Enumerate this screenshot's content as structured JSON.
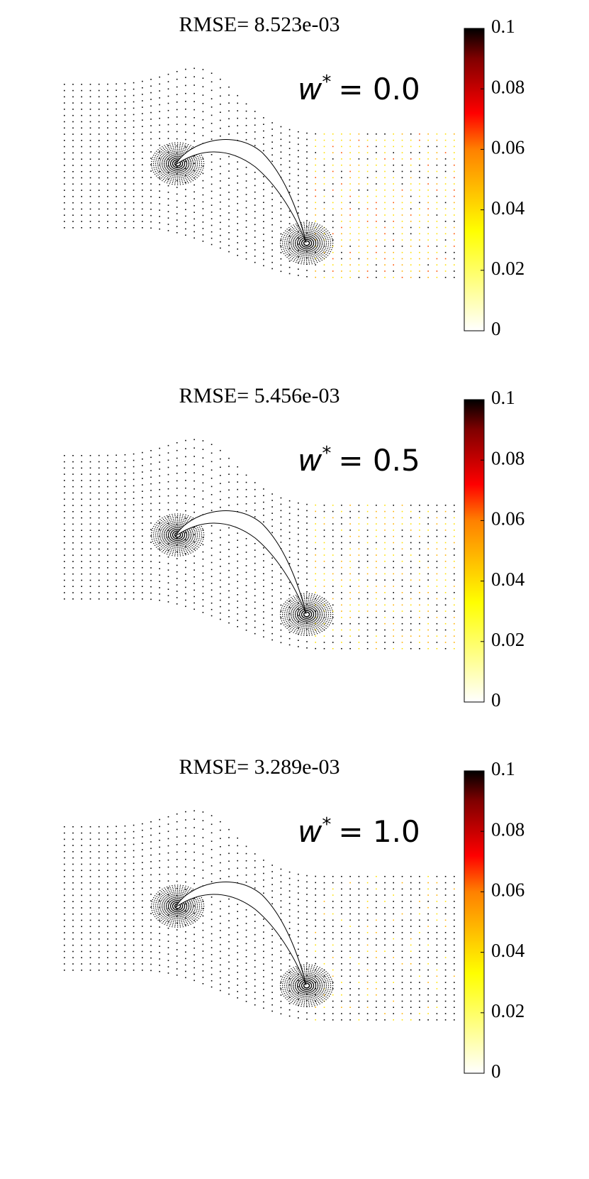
{
  "chart_data": [
    {
      "type": "mesh",
      "title": "RMSE= 8.523e-03",
      "annotation": {
        "symbol": "w",
        "superscript": "*",
        "text": "= 0.0"
      },
      "colorbar": {
        "lim": [
          0,
          0.1
        ],
        "ticks": [
          0,
          0.02,
          0.04,
          0.06,
          0.08,
          0.1
        ]
      }
    },
    {
      "type": "mesh",
      "title": "RMSE= 5.456e-03",
      "annotation": {
        "symbol": "w",
        "superscript": "*",
        "text": "= 0.5"
      },
      "colorbar": {
        "lim": [
          0,
          0.1
        ],
        "ticks": [
          0,
          0.02,
          0.04,
          0.06,
          0.08,
          0.1
        ]
      }
    },
    {
      "type": "mesh",
      "title": "RMSE= 3.289e-03",
      "annotation": {
        "symbol": "w",
        "superscript": "*",
        "text": "= 1.0"
      },
      "colorbar": {
        "lim": [
          0,
          0.1
        ],
        "ticks": [
          0,
          0.02,
          0.04,
          0.06,
          0.08,
          0.1
        ]
      }
    }
  ]
}
